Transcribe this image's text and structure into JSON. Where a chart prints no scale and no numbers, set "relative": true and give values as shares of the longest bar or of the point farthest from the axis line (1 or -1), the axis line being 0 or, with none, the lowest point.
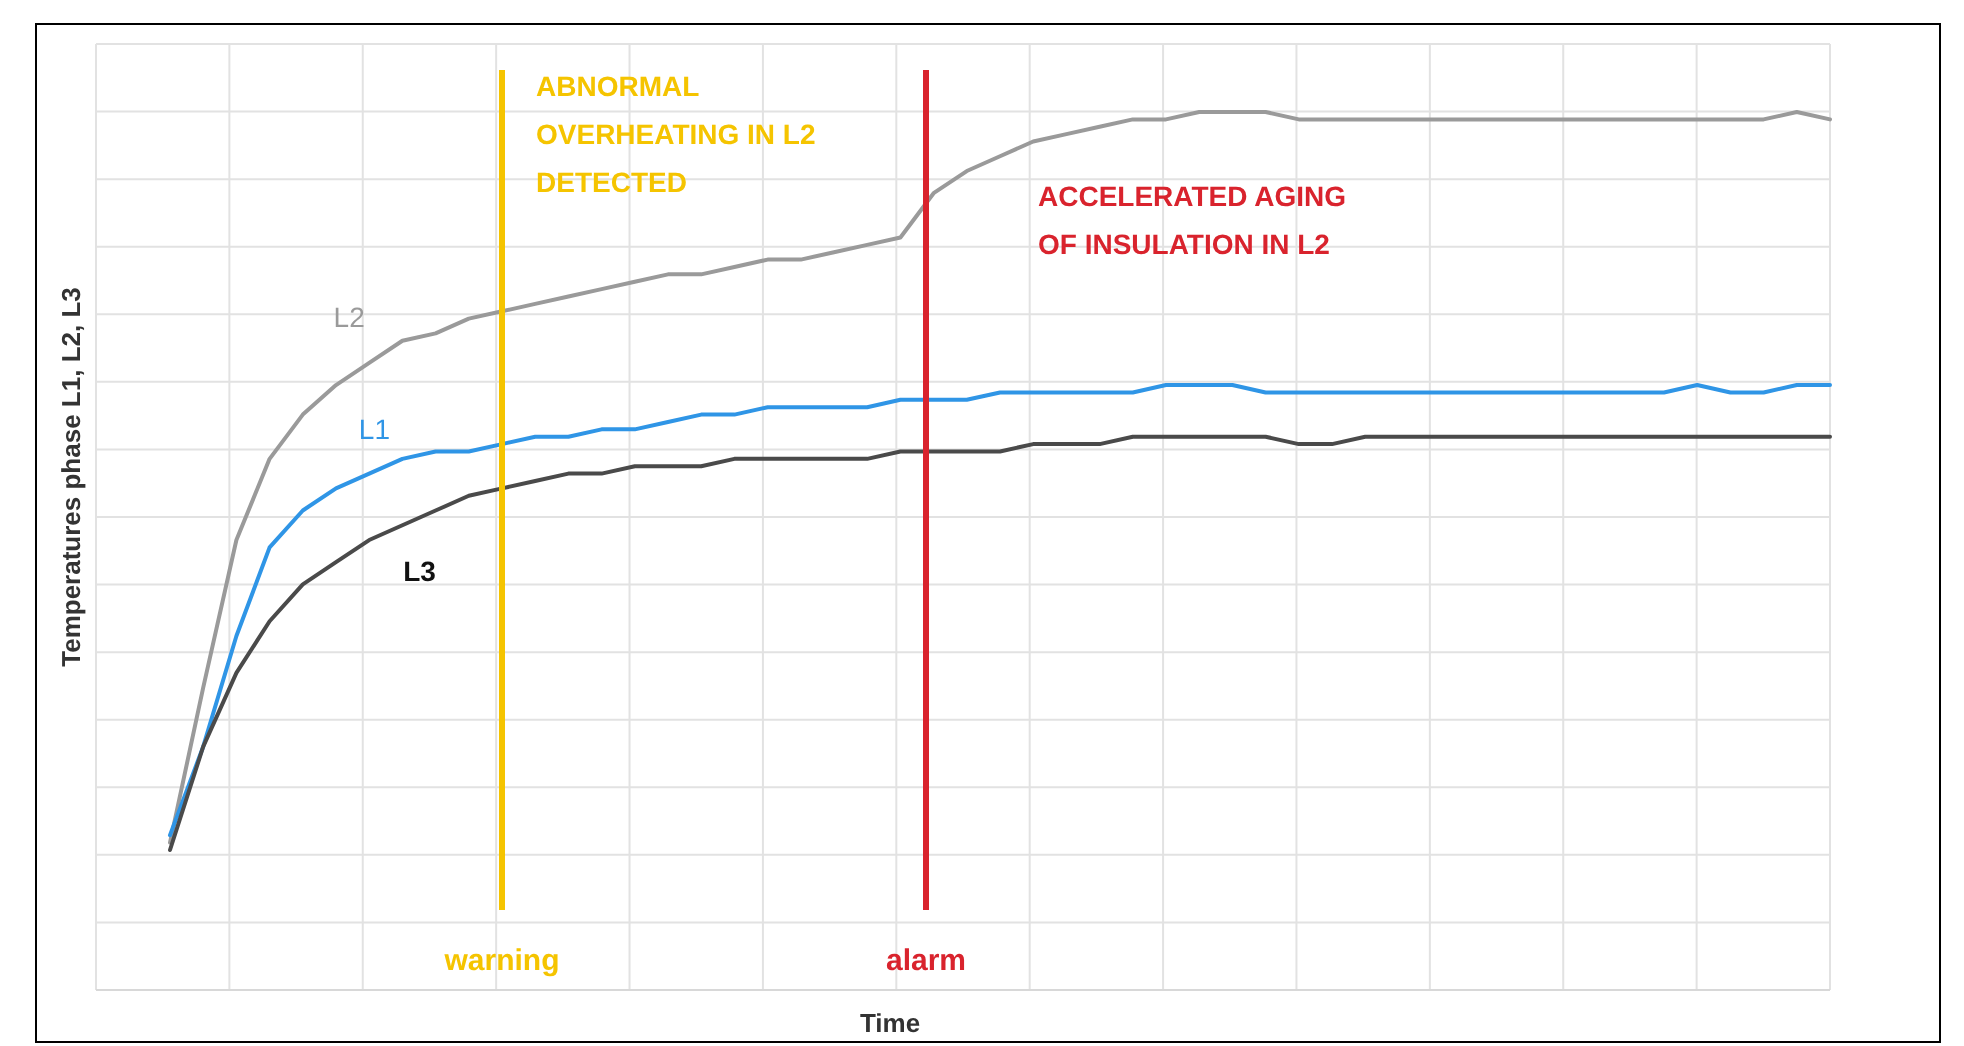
{
  "chart_data": {
    "type": "line",
    "relative": true,
    "ylabel": "Temperatures phase L1, L2, L3",
    "grid": true,
    "line_style": "solid",
    "categories": [
      null,
      null,
      null,
      null,
      null,
      null,
      null,
      null,
      null,
      null,
      null,
      null,
      null,
      null,
      null,
      null,
      null,
      null,
      null,
      null,
      null,
      null,
      null,
      null,
      null,
      null,
      null,
      null,
      null,
      null,
      null,
      null,
      null,
      null,
      null,
      null,
      null,
      null,
      null,
      null,
      null,
      null,
      null,
      null,
      null,
      null,
      null,
      null,
      null,
      null,
      null
    ],
    "series": [
      {
        "name": "L2",
        "color": "#9a9a9a",
        "values": [
          0.01,
          0.22,
          0.42,
          0.53,
          0.59,
          0.63,
          0.66,
          0.69,
          0.7,
          0.72,
          0.73,
          0.74,
          0.75,
          0.76,
          0.77,
          0.78,
          0.78,
          0.79,
          0.8,
          0.8,
          0.81,
          0.82,
          0.83,
          0.89,
          0.92,
          0.94,
          0.96,
          0.97,
          0.98,
          0.99,
          0.99,
          1.0,
          1.0,
          1.0,
          0.99,
          0.99,
          0.99,
          0.99,
          0.99,
          0.99,
          0.99,
          0.99,
          0.99,
          0.99,
          0.99,
          0.99,
          0.99,
          0.99,
          0.99,
          1.0,
          0.99
        ]
      },
      {
        "name": "L1",
        "color": "#2f95e6",
        "values": [
          0.02,
          0.14,
          0.29,
          0.41,
          0.46,
          0.49,
          0.51,
          0.53,
          0.54,
          0.54,
          0.55,
          0.56,
          0.56,
          0.57,
          0.57,
          0.58,
          0.59,
          0.59,
          0.6,
          0.6,
          0.6,
          0.6,
          0.61,
          0.61,
          0.61,
          0.62,
          0.62,
          0.62,
          0.62,
          0.62,
          0.63,
          0.63,
          0.63,
          0.62,
          0.62,
          0.62,
          0.62,
          0.62,
          0.62,
          0.62,
          0.62,
          0.62,
          0.62,
          0.62,
          0.62,
          0.62,
          0.63,
          0.62,
          0.62,
          0.63,
          0.63
        ]
      },
      {
        "name": "L3",
        "color": "#4a4a4a",
        "values": [
          0,
          0.14,
          0.24,
          0.31,
          0.36,
          0.39,
          0.42,
          0.44,
          0.46,
          0.48,
          0.49,
          0.5,
          0.51,
          0.51,
          0.52,
          0.52,
          0.52,
          0.53,
          0.53,
          0.53,
          0.53,
          0.53,
          0.54,
          0.54,
          0.54,
          0.54,
          0.55,
          0.55,
          0.55,
          0.56,
          0.56,
          0.56,
          0.56,
          0.56,
          0.55,
          0.55,
          0.56,
          0.56,
          0.56,
          0.56,
          0.56,
          0.56,
          0.56,
          0.56,
          0.56,
          0.56,
          0.56,
          0.56,
          0.56,
          0.56,
          0.56
        ]
      }
    ],
    "annotations": [
      "ABNORMAL\nOVERHEATING IN L2\nDETECTED",
      "ACCELERATED AGING\nOF INSULATION IN L2",
      "warning",
      "alarm",
      "Time"
    ]
  }
}
